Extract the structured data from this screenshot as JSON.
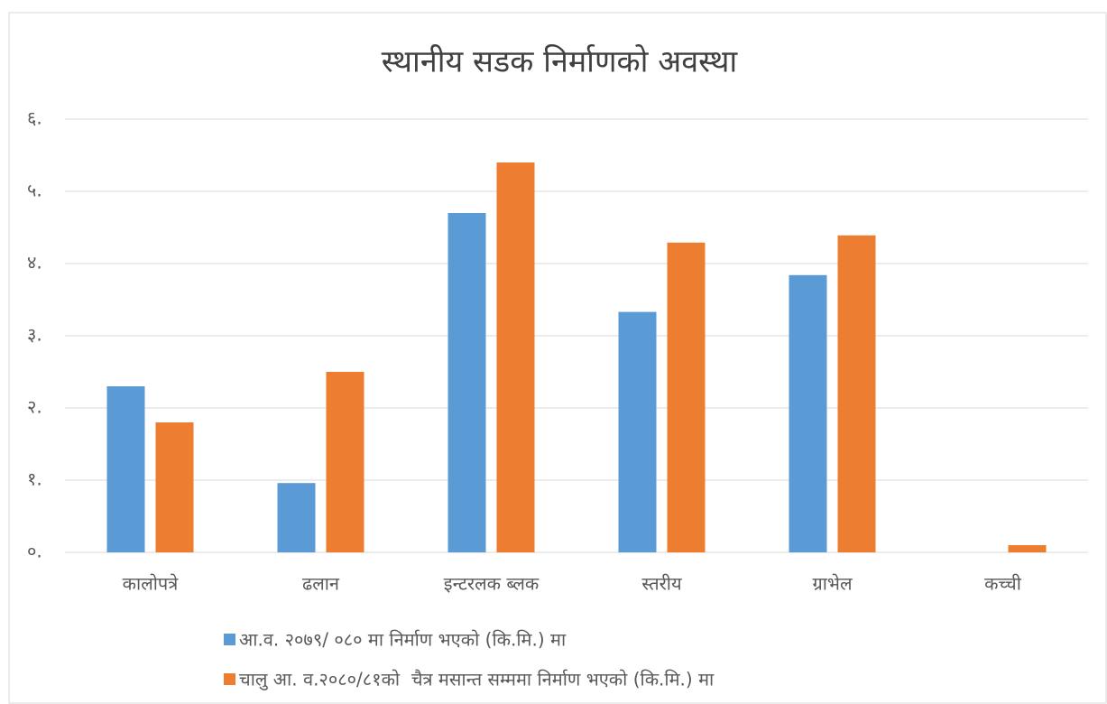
{
  "chart_data": {
    "type": "bar",
    "title": "स्थानीय सडक निर्माणको अवस्था",
    "categories": [
      "कालोपत्रे",
      "ढलान",
      "इन्टरलक ब्लक",
      "स्तरीय",
      "ग्राभेल",
      "कच्ची"
    ],
    "series": [
      {
        "name": "आ.व. २०७९/ ०८० मा निर्माण भएको (कि.मि.) मा",
        "color": "#5b9bd5",
        "values": [
          2.3,
          0.96,
          4.7,
          3.33,
          3.84,
          0
        ]
      },
      {
        "name": "चालु आ. व.२०८०/८१को  चैत्र मसान्त सम्ममा निर्माण भएको (कि.मि.) मा",
        "color": "#ed7d31",
        "values": [
          1.8,
          2.5,
          5.4,
          4.29,
          4.39,
          0.1
        ]
      }
    ],
    "ylim": [
      0,
      6
    ],
    "yticks": [
      {
        "value": 0,
        "label": "०."
      },
      {
        "value": 1,
        "label": "१."
      },
      {
        "value": 2,
        "label": "२."
      },
      {
        "value": 3,
        "label": "३."
      },
      {
        "value": 4,
        "label": "४."
      },
      {
        "value": 5,
        "label": "५."
      },
      {
        "value": 6,
        "label": "६."
      }
    ],
    "grid": true,
    "legend": "bottom"
  }
}
